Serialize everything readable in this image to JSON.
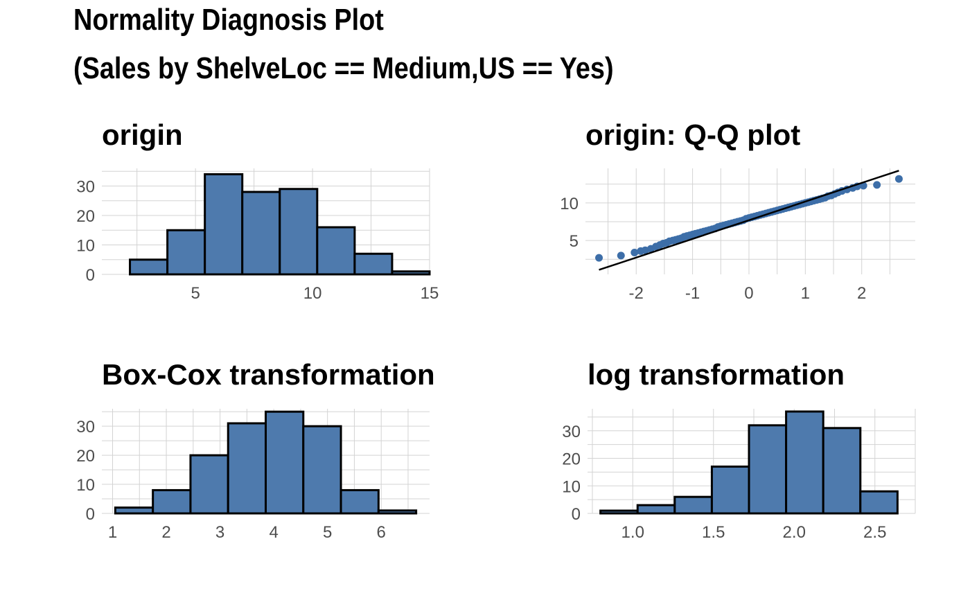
{
  "page": {
    "title": "Normality Diagnosis Plot",
    "subtitle": "(Sales by ShelveLoc == Medium,US == Yes)"
  },
  "colors": {
    "fill": "#4e7aad",
    "point": "#3d6ea8",
    "grid": "#d3d3d3",
    "outline": "#000000",
    "tick_text": "#4d4d4d"
  },
  "chart_data": [
    {
      "type": "bar",
      "title": "origin",
      "bin_edges": [
        2.2,
        3.8,
        5.4,
        7.0,
        8.6,
        10.2,
        11.8,
        13.4,
        15.0
      ],
      "values": [
        5,
        15,
        34,
        28,
        29,
        16,
        7,
        1
      ],
      "xlim": [
        1.0,
        15.0
      ],
      "ylim": [
        0,
        36
      ],
      "xticks": [
        5,
        10,
        15
      ],
      "yticks": [
        0,
        10,
        20,
        30
      ],
      "xlabel": "",
      "ylabel": ""
    },
    {
      "type": "scatter",
      "title": "origin: Q-Q plot",
      "x": [
        -2.66,
        -2.27,
        -2.03,
        -1.92,
        -1.84,
        -1.74,
        -1.65,
        -1.58,
        -1.52,
        -1.46,
        -1.41,
        -1.35,
        -1.3,
        -1.25,
        -1.2,
        -1.15,
        -1.1,
        -1.05,
        -1.0,
        -0.95,
        -0.9,
        -0.85,
        -0.8,
        -0.75,
        -0.7,
        -0.65,
        -0.6,
        -0.55,
        -0.5,
        -0.45,
        -0.4,
        -0.35,
        -0.3,
        -0.25,
        -0.2,
        -0.15,
        -0.1,
        -0.05,
        0.0,
        0.05,
        0.1,
        0.15,
        0.2,
        0.25,
        0.3,
        0.35,
        0.4,
        0.45,
        0.5,
        0.55,
        0.6,
        0.65,
        0.7,
        0.75,
        0.8,
        0.85,
        0.9,
        0.95,
        1.0,
        1.05,
        1.1,
        1.15,
        1.2,
        1.25,
        1.3,
        1.35,
        1.4,
        1.46,
        1.52,
        1.58,
        1.65,
        1.74,
        1.84,
        1.92,
        2.03,
        2.27,
        2.66
      ],
      "y": [
        2.7,
        3.0,
        3.4,
        3.6,
        3.7,
        3.9,
        4.2,
        4.4,
        4.6,
        4.7,
        4.9,
        5.0,
        5.1,
        5.2,
        5.3,
        5.5,
        5.6,
        5.7,
        5.8,
        5.9,
        6.0,
        6.1,
        6.2,
        6.3,
        6.4,
        6.5,
        6.6,
        6.8,
        6.9,
        7.0,
        7.1,
        7.2,
        7.3,
        7.4,
        7.5,
        7.6,
        7.7,
        7.9,
        8.0,
        8.1,
        8.2,
        8.3,
        8.4,
        8.5,
        8.6,
        8.7,
        8.8,
        8.9,
        9.0,
        9.1,
        9.2,
        9.3,
        9.4,
        9.5,
        9.6,
        9.7,
        9.8,
        9.9,
        10.0,
        10.1,
        10.2,
        10.3,
        10.4,
        10.5,
        10.6,
        10.7,
        10.9,
        11.0,
        11.2,
        11.4,
        11.6,
        11.8,
        12.0,
        12.2,
        12.3,
        12.4,
        13.2
      ],
      "ref_line": {
        "x": [
          -2.66,
          2.66
        ],
        "y": [
          1.1,
          14.3
        ]
      },
      "xlim": [
        -2.9,
        2.95
      ],
      "ylim": [
        0.5,
        14.6
      ],
      "xticks": [
        -2,
        -1,
        0,
        1,
        2
      ],
      "yticks": [
        5,
        10
      ],
      "xlabel": "",
      "ylabel": ""
    },
    {
      "type": "bar",
      "title": "Box-Cox transformation",
      "bin_edges": [
        1.05,
        1.75,
        2.45,
        3.15,
        3.85,
        4.55,
        5.25,
        5.95,
        6.65
      ],
      "values": [
        2,
        8,
        20,
        31,
        35,
        30,
        8,
        1
      ],
      "xlim": [
        0.8,
        6.9
      ],
      "ylim": [
        0,
        36
      ],
      "xticks": [
        1,
        2,
        3,
        4,
        5,
        6
      ],
      "yticks": [
        0,
        10,
        20,
        30
      ],
      "xlabel": "",
      "ylabel": ""
    },
    {
      "type": "bar",
      "title": "log transformation",
      "bin_edges": [
        0.8,
        1.03,
        1.26,
        1.49,
        1.72,
        1.95,
        2.18,
        2.41,
        2.64
      ],
      "values": [
        1,
        3,
        6,
        17,
        32,
        37,
        31,
        8
      ],
      "xlim": [
        0.72,
        2.75
      ],
      "ylim": [
        0,
        38
      ],
      "xticks": [
        1.0,
        1.5,
        2.0,
        2.5
      ],
      "yticks": [
        0,
        10,
        20,
        30
      ],
      "xlabel": "",
      "ylabel": ""
    }
  ]
}
